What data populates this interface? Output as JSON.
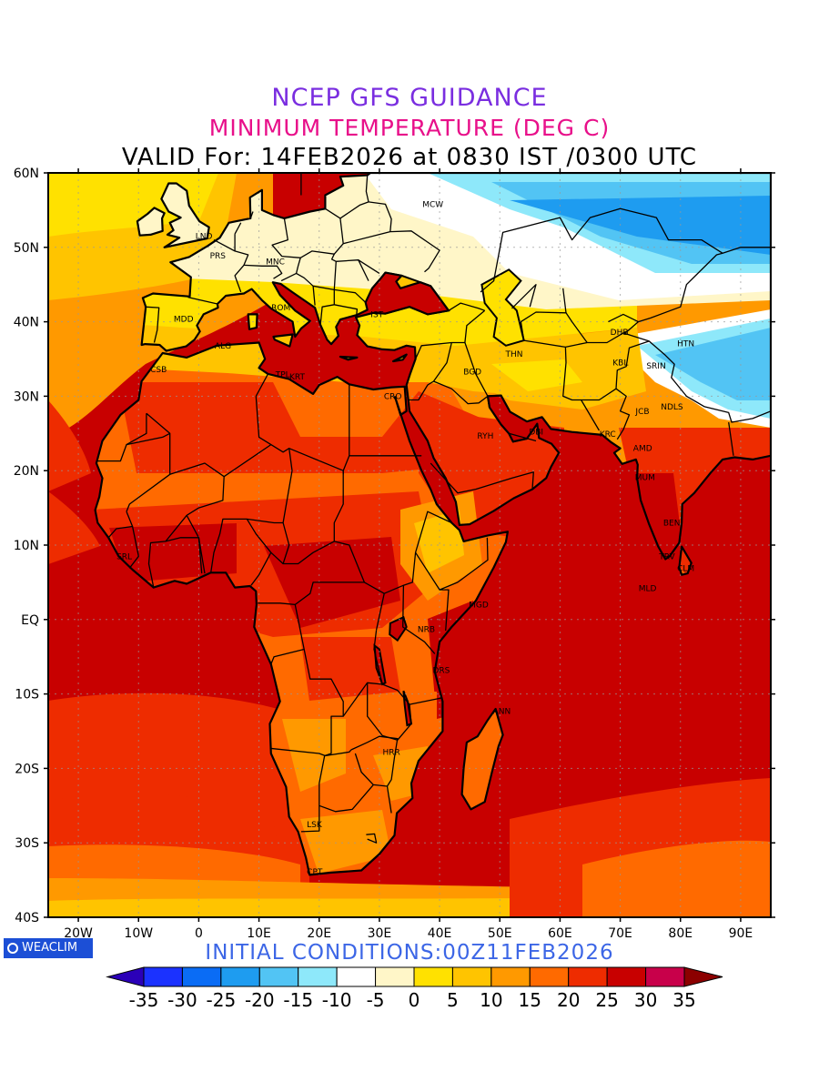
{
  "header": {
    "title": "NCEP GFS GUIDANCE",
    "subtitle": "MINIMUM TEMPERATURE (DEG C)",
    "valid": "VALID For: 14FEB2026 at 0830 IST /0300 UTC"
  },
  "footer": {
    "brand": "WEACLIM",
    "initial_conditions": "INITIAL CONDITIONS:00Z11FEB2026"
  },
  "axes": {
    "lon_labels": [
      "20W",
      "10W",
      "0",
      "10E",
      "20E",
      "30E",
      "40E",
      "50E",
      "60E",
      "70E",
      "80E",
      "90E"
    ],
    "lat_labels": [
      "60N",
      "50N",
      "40N",
      "30N",
      "20N",
      "10N",
      "EQ",
      "10S",
      "20S",
      "30S",
      "40S"
    ]
  },
  "colorbar": {
    "labels": [
      "-35",
      "-30",
      "-25",
      "-20",
      "-15",
      "-10",
      "-5",
      "0",
      "5",
      "10",
      "15",
      "20",
      "25",
      "30",
      "35"
    ],
    "colors": [
      "#2b00b8",
      "#1b32ff",
      "#0a6cf5",
      "#1e9cf0",
      "#52c4f4",
      "#8ee8fa",
      "#ffffff",
      "#fff6c8",
      "#ffe100",
      "#ffc400",
      "#ff9900",
      "#ff6a00",
      "#ee2c00",
      "#c80000",
      "#c8004a",
      "#8c0000"
    ]
  },
  "cities": [
    {
      "code": "MCW",
      "lon": 37.6,
      "lat": 55.8
    },
    {
      "code": "LND",
      "lon": -0.1,
      "lat": 51.5
    },
    {
      "code": "PRS",
      "lon": 2.3,
      "lat": 48.9
    },
    {
      "code": "MNC",
      "lon": 11.6,
      "lat": 48.1
    },
    {
      "code": "ROM",
      "lon": 12.5,
      "lat": 41.9
    },
    {
      "code": "MDD",
      "lon": -3.7,
      "lat": 40.4
    },
    {
      "code": "IST",
      "lon": 29.0,
      "lat": 41.0
    },
    {
      "code": "ALG",
      "lon": 3.1,
      "lat": 36.8
    },
    {
      "code": "CSB",
      "lon": -7.6,
      "lat": 33.6
    },
    {
      "code": "TPL",
      "lon": 13.2,
      "lat": 32.9
    },
    {
      "code": "KRT",
      "lon": 15.5,
      "lat": 32.6
    },
    {
      "code": "CRO",
      "lon": 31.2,
      "lat": 30.0
    },
    {
      "code": "BGD",
      "lon": 44.4,
      "lat": 33.3
    },
    {
      "code": "THN",
      "lon": 51.4,
      "lat": 35.7
    },
    {
      "code": "DHB",
      "lon": 68.8,
      "lat": 38.6
    },
    {
      "code": "KBL",
      "lon": 69.2,
      "lat": 34.5
    },
    {
      "code": "HTN",
      "lon": 79.9,
      "lat": 37.1
    },
    {
      "code": "RYH",
      "lon": 46.7,
      "lat": 24.7
    },
    {
      "code": "DBI",
      "lon": 55.3,
      "lat": 25.2
    },
    {
      "code": "KRC",
      "lon": 67.0,
      "lat": 24.9
    },
    {
      "code": "AMD",
      "lon": 72.6,
      "lat": 23.0
    },
    {
      "code": "JCB",
      "lon": 73.0,
      "lat": 28.0
    },
    {
      "code": "NDLS",
      "lon": 77.2,
      "lat": 28.6
    },
    {
      "code": "SRIN",
      "lon": 74.8,
      "lat": 34.1
    },
    {
      "code": "MUM",
      "lon": 72.9,
      "lat": 19.1
    },
    {
      "code": "BEN",
      "lon": 77.6,
      "lat": 13.0
    },
    {
      "code": "TRV",
      "lon": 76.9,
      "lat": 8.5
    },
    {
      "code": "CLM",
      "lon": 79.9,
      "lat": 6.9
    },
    {
      "code": "MLD",
      "lon": 73.5,
      "lat": 4.2
    },
    {
      "code": "SRL",
      "lon": -13.2,
      "lat": 8.5
    },
    {
      "code": "MGD",
      "lon": 45.3,
      "lat": 2.0
    },
    {
      "code": "NRB",
      "lon": 36.8,
      "lat": -1.3
    },
    {
      "code": "DRS",
      "lon": 39.3,
      "lat": -6.8
    },
    {
      "code": "ANN",
      "lon": 49.3,
      "lat": -12.3
    },
    {
      "code": "HRR",
      "lon": 31.0,
      "lat": -17.8
    },
    {
      "code": "LSK",
      "lon": 18.4,
      "lat": -27.5
    },
    {
      "code": "CPT",
      "lon": 18.4,
      "lat": -33.9
    }
  ]
}
